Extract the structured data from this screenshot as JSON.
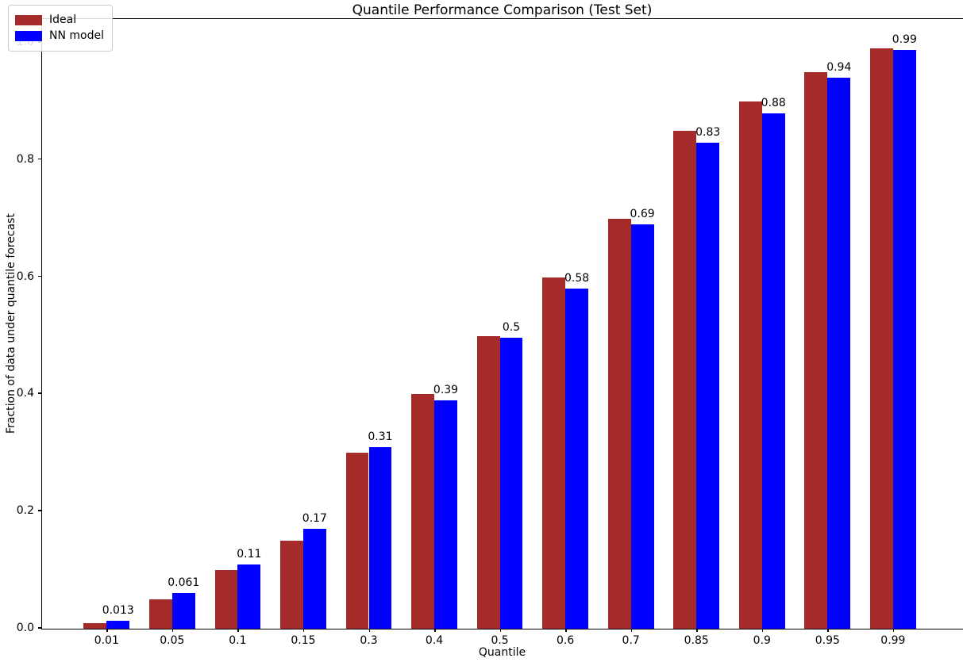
{
  "chart_data": {
    "type": "bar",
    "title": "Quantile Performance Comparison (Test Set)",
    "xlabel": "Quantile",
    "ylabel": "Fraction of data under quantile forecast",
    "categories": [
      "0.01",
      "0.05",
      "0.1",
      "0.15",
      "0.3",
      "0.4",
      "0.5",
      "0.6",
      "0.7",
      "0.85",
      "0.9",
      "0.95",
      "0.99"
    ],
    "series": [
      {
        "name": "Ideal",
        "color": "#a52a2a",
        "values": [
          0.01,
          0.05,
          0.1,
          0.15,
          0.3,
          0.4,
          0.5,
          0.6,
          0.7,
          0.85,
          0.9,
          0.95,
          0.99
        ]
      },
      {
        "name": "NN model",
        "color": "#0000ff",
        "values": [
          0.013,
          0.061,
          0.11,
          0.17,
          0.31,
          0.39,
          0.497,
          0.58,
          0.69,
          0.83,
          0.88,
          0.94,
          0.988
        ]
      }
    ],
    "annotations": [
      "0.013",
      "0.061",
      "0.11",
      "0.17",
      "0.31",
      "0.39",
      "0.5",
      "0.58",
      "0.69",
      "0.83",
      "0.88",
      "0.94",
      "0.99"
    ],
    "yticks": [
      "0.0",
      "0.2",
      "0.4",
      "0.6",
      "0.8",
      "1.0"
    ],
    "ytick_values": [
      0.0,
      0.2,
      0.4,
      0.6,
      0.8,
      1.0
    ],
    "ylim": [
      0,
      1.04
    ],
    "grid": false,
    "legend_position": "upper left"
  }
}
